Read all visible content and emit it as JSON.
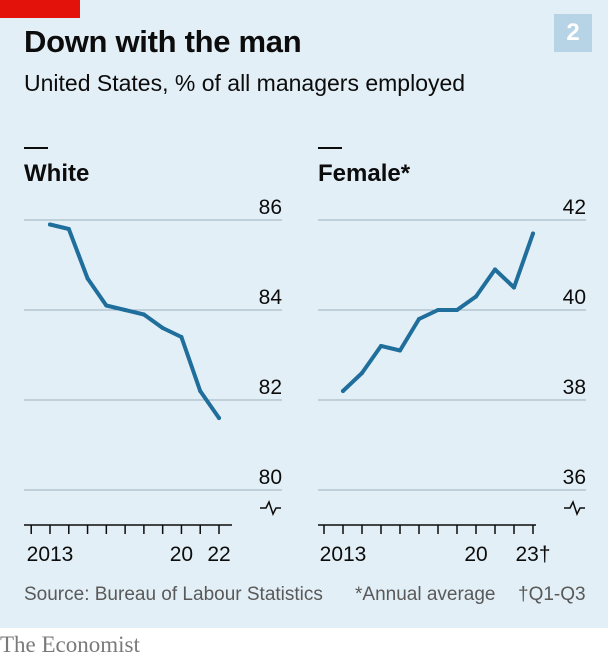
{
  "header": {
    "title": "Down with the man",
    "subtitle": "United States, % of all managers employed",
    "badge": "2"
  },
  "footer": {
    "source": "Source: Bureau of Labour Statistics",
    "note_annual": "*Annual average",
    "note_q": "†Q1-Q3",
    "brand": "The Economist"
  },
  "colors": {
    "line": "#1f6e9c",
    "accent": "#e3120b",
    "background": "#e3eff6"
  },
  "chart_data": [
    {
      "type": "line",
      "title": "White",
      "x": [
        2013,
        2014,
        2015,
        2016,
        2017,
        2018,
        2019,
        2020,
        2021,
        2022
      ],
      "values": [
        85.9,
        85.8,
        84.7,
        84.1,
        84.0,
        83.9,
        83.6,
        83.4,
        82.2,
        81.6
      ],
      "ylim": [
        80,
        86
      ],
      "yticks": [
        80,
        82,
        84,
        86
      ],
      "ytick_labels": [
        "80",
        "82",
        "84",
        "86"
      ],
      "xtick_labels": [
        "2013",
        "20",
        "22"
      ],
      "xtick_label_years": [
        2013,
        2020,
        2022
      ],
      "broken_axis": true,
      "grid": true
    },
    {
      "type": "line",
      "title": "Female*",
      "x": [
        2013,
        2014,
        2015,
        2016,
        2017,
        2018,
        2019,
        2020,
        2021,
        2022,
        2023
      ],
      "values": [
        38.2,
        38.6,
        39.2,
        39.1,
        39.8,
        40.0,
        40.0,
        40.3,
        40.9,
        40.5,
        41.7
      ],
      "ylim": [
        36,
        42
      ],
      "yticks": [
        36,
        38,
        40,
        42
      ],
      "ytick_labels": [
        "36",
        "38",
        "40",
        "42"
      ],
      "xtick_labels": [
        "2013",
        "20",
        "23†"
      ],
      "xtick_label_years": [
        2013,
        2020,
        2023
      ],
      "broken_axis": true,
      "grid": true
    }
  ]
}
